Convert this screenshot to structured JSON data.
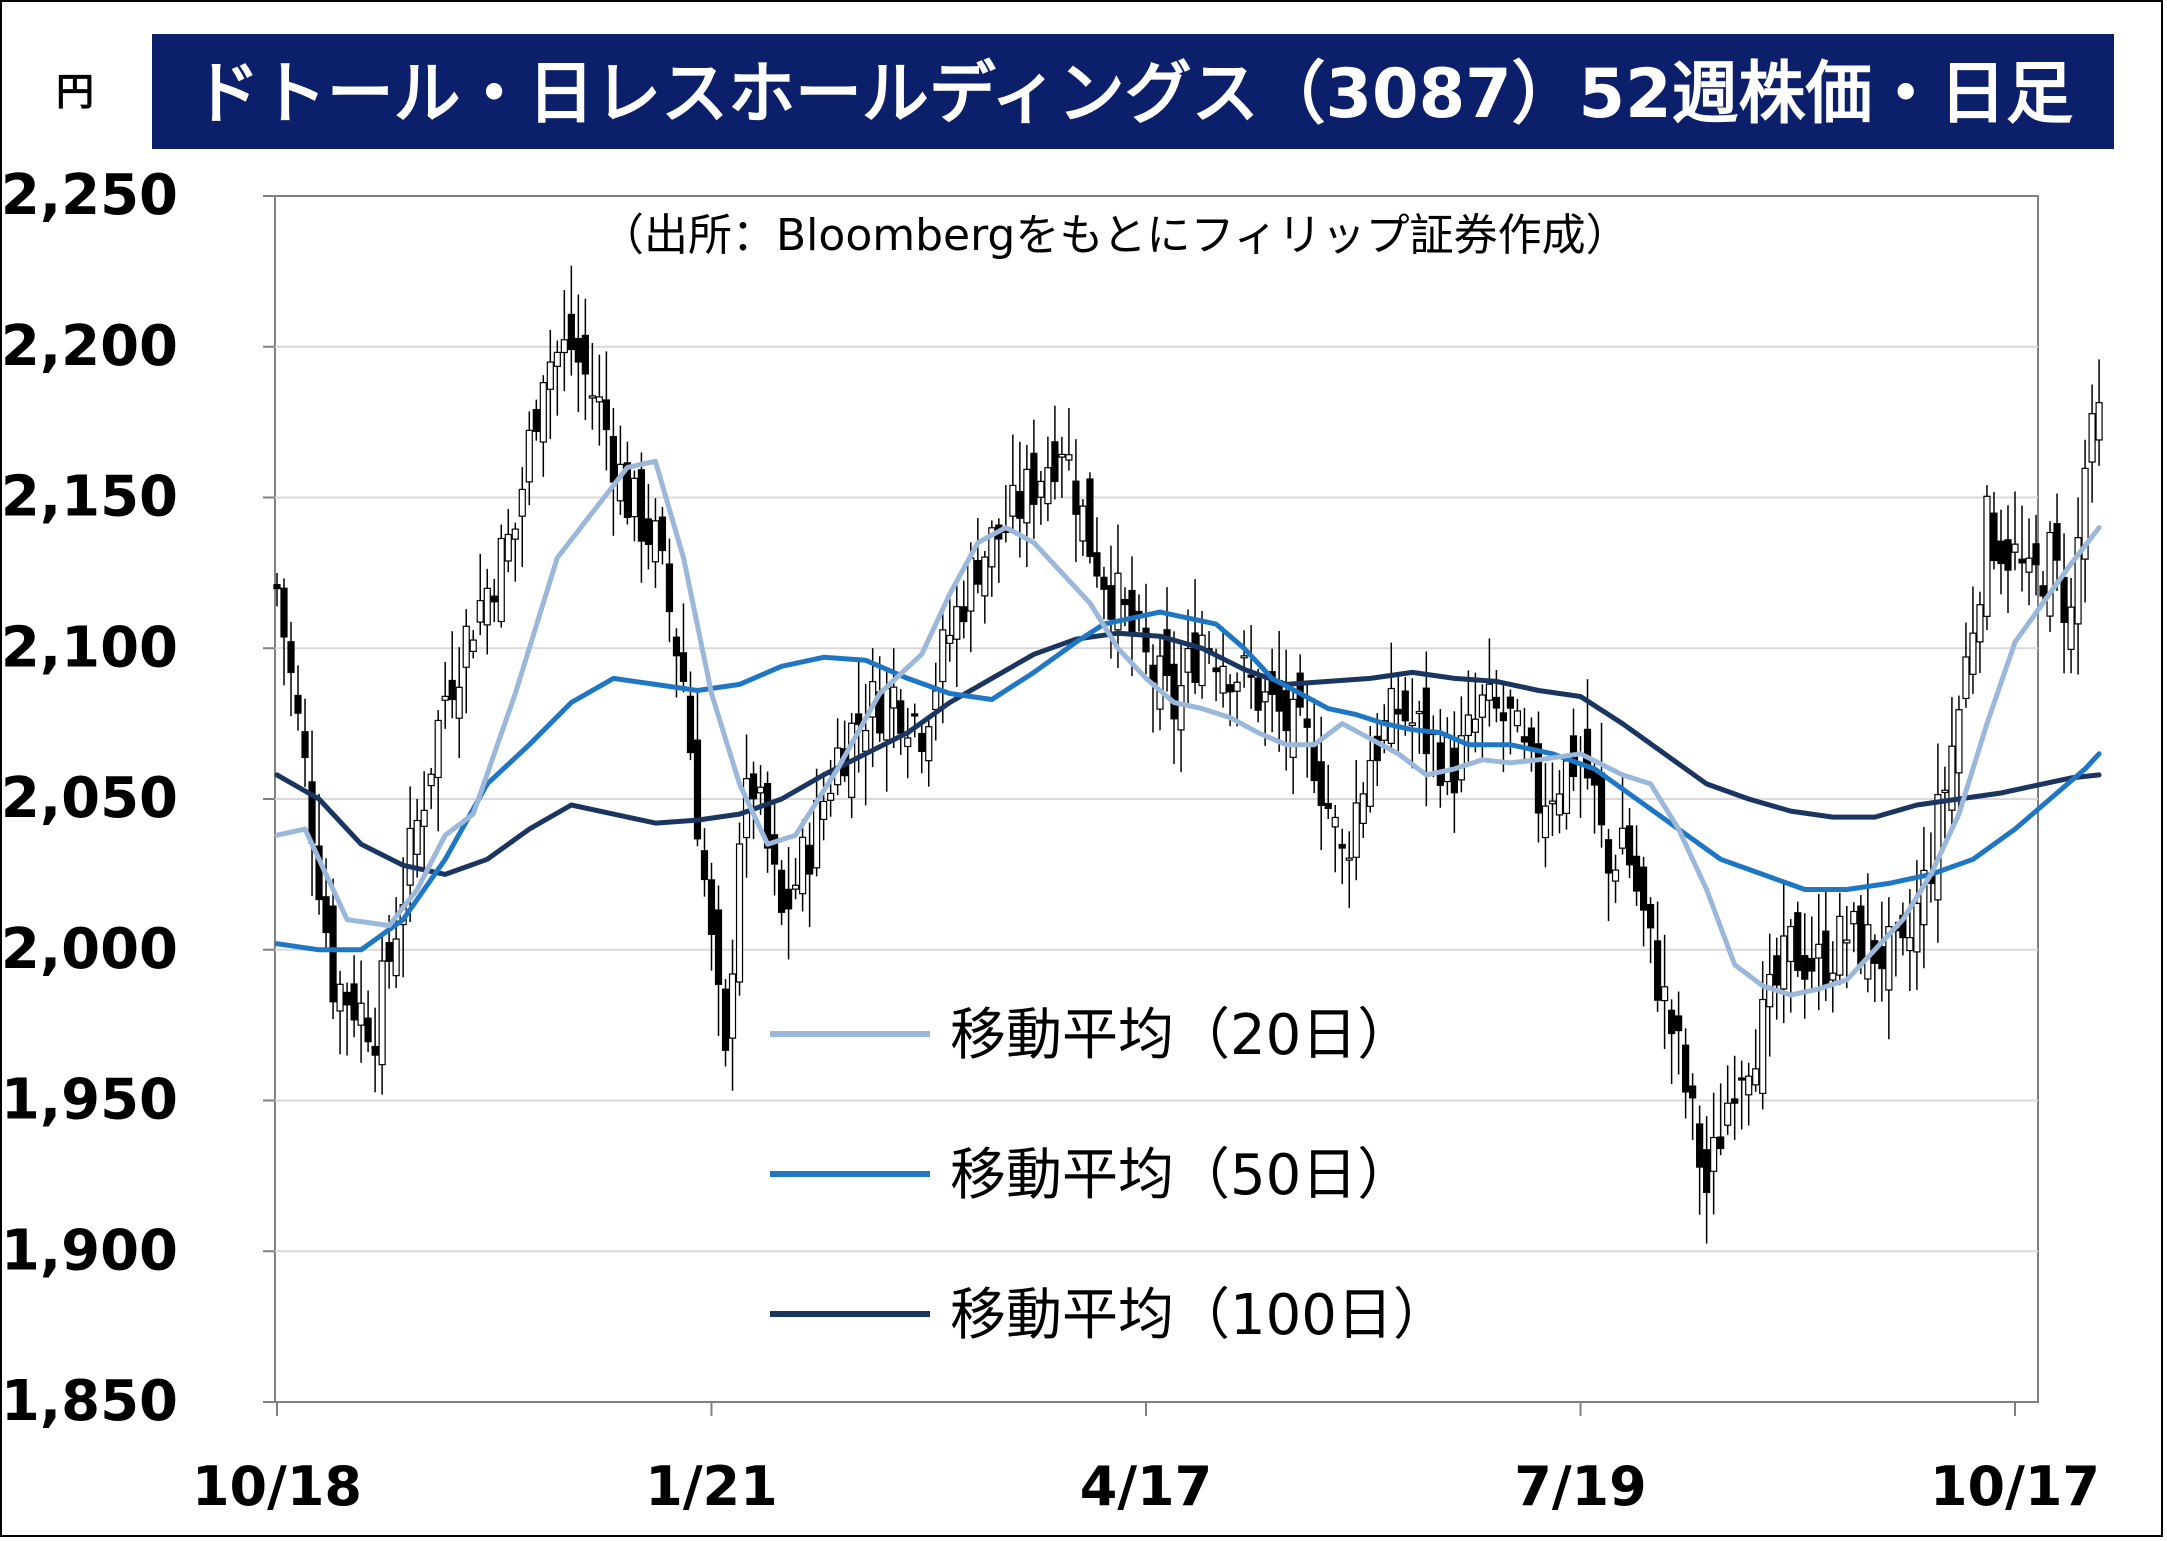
{
  "chart_data": {
    "type": "candlestick",
    "title": "ドトール・日レスホールディングス（3087）52週株価・日足",
    "ylabel": "円",
    "source_note": "（出所：Bloombergをもとにフィリップ証券作成）",
    "ylim": [
      1850,
      2250
    ],
    "yticks": [
      "2,250",
      "2,200",
      "2,150",
      "2,100",
      "2,050",
      "2,000",
      "1,950",
      "1,900",
      "1,850"
    ],
    "ytick_values": [
      2250,
      2200,
      2150,
      2100,
      2050,
      2000,
      1950,
      1900,
      1850
    ],
    "xtick_labels": [
      "10/18",
      "1/21",
      "4/17",
      "7/19",
      "10/17"
    ],
    "xtick_index": [
      0,
      62,
      124,
      186,
      248
    ],
    "colors": {
      "title_bg": "#0b1f6a",
      "ma20": "#9bb7d9",
      "ma50": "#1f77c4",
      "ma100": "#1a3560",
      "grid": "#d9d9d9",
      "axis": "#808080"
    },
    "legend": [
      {
        "name": "移動平均（20日）",
        "series": "ma20"
      },
      {
        "name": "移動平均（50日）",
        "series": "ma50"
      },
      {
        "name": "移動平均（100日）",
        "series": "ma100"
      }
    ],
    "candle_key_points": [
      [
        0,
        2120
      ],
      [
        4,
        2060
      ],
      [
        8,
        1990
      ],
      [
        14,
        1975
      ],
      [
        18,
        2020
      ],
      [
        24,
        2085
      ],
      [
        28,
        2110
      ],
      [
        34,
        2140
      ],
      [
        38,
        2195
      ],
      [
        42,
        2200
      ],
      [
        46,
        2180
      ],
      [
        50,
        2150
      ],
      [
        54,
        2135
      ],
      [
        58,
        2090
      ],
      [
        60,
        2045
      ],
      [
        62,
        2000
      ],
      [
        64,
        1960
      ],
      [
        66,
        2040
      ],
      [
        68,
        2055
      ],
      [
        72,
        2010
      ],
      [
        76,
        2035
      ],
      [
        80,
        2065
      ],
      [
        84,
        2080
      ],
      [
        88,
        2085
      ],
      [
        92,
        2075
      ],
      [
        96,
        2105
      ],
      [
        100,
        2130
      ],
      [
        104,
        2140
      ],
      [
        108,
        2155
      ],
      [
        112,
        2170
      ],
      [
        116,
        2135
      ],
      [
        120,
        2115
      ],
      [
        124,
        2095
      ],
      [
        128,
        2080
      ],
      [
        132,
        2105
      ],
      [
        136,
        2095
      ],
      [
        140,
        2085
      ],
      [
        144,
        2075
      ],
      [
        148,
        2065
      ],
      [
        152,
        2030
      ],
      [
        156,
        2065
      ],
      [
        160,
        2080
      ],
      [
        164,
        2070
      ],
      [
        168,
        2060
      ],
      [
        172,
        2080
      ],
      [
        176,
        2075
      ],
      [
        180,
        2050
      ],
      [
        184,
        2060
      ],
      [
        186,
        2065
      ],
      [
        188,
        2050
      ],
      [
        190,
        2025
      ],
      [
        192,
        2040
      ],
      [
        196,
        2000
      ],
      [
        200,
        1965
      ],
      [
        204,
        1920
      ],
      [
        208,
        1960
      ],
      [
        212,
        1975
      ],
      [
        216,
        2000
      ],
      [
        220,
        1995
      ],
      [
        224,
        2005
      ],
      [
        228,
        2000
      ],
      [
        232,
        1995
      ],
      [
        236,
        2030
      ],
      [
        240,
        2080
      ],
      [
        244,
        2140
      ],
      [
        248,
        2130
      ],
      [
        250,
        2120
      ],
      [
        253,
        2130
      ],
      [
        256,
        2110
      ],
      [
        258,
        2160
      ],
      [
        260,
        2175
      ]
    ],
    "ma20": [
      [
        0,
        2038
      ],
      [
        4,
        2040
      ],
      [
        10,
        2010
      ],
      [
        16,
        2008
      ],
      [
        20,
        2020
      ],
      [
        24,
        2038
      ],
      [
        28,
        2045
      ],
      [
        34,
        2085
      ],
      [
        40,
        2130
      ],
      [
        46,
        2148
      ],
      [
        50,
        2160
      ],
      [
        54,
        2162
      ],
      [
        58,
        2130
      ],
      [
        62,
        2085
      ],
      [
        66,
        2055
      ],
      [
        70,
        2035
      ],
      [
        74,
        2038
      ],
      [
        80,
        2060
      ],
      [
        86,
        2085
      ],
      [
        92,
        2098
      ],
      [
        96,
        2118
      ],
      [
        100,
        2135
      ],
      [
        104,
        2140
      ],
      [
        108,
        2135
      ],
      [
        112,
        2125
      ],
      [
        116,
        2115
      ],
      [
        120,
        2100
      ],
      [
        124,
        2090
      ],
      [
        128,
        2082
      ],
      [
        132,
        2080
      ],
      [
        136,
        2077
      ],
      [
        140,
        2072
      ],
      [
        144,
        2068
      ],
      [
        148,
        2068
      ],
      [
        152,
        2075
      ],
      [
        156,
        2070
      ],
      [
        160,
        2065
      ],
      [
        164,
        2058
      ],
      [
        168,
        2060
      ],
      [
        172,
        2063
      ],
      [
        176,
        2062
      ],
      [
        180,
        2063
      ],
      [
        186,
        2065
      ],
      [
        192,
        2058
      ],
      [
        196,
        2055
      ],
      [
        200,
        2040
      ],
      [
        204,
        2020
      ],
      [
        208,
        1995
      ],
      [
        212,
        1988
      ],
      [
        216,
        1985
      ],
      [
        220,
        1987
      ],
      [
        224,
        1990
      ],
      [
        228,
        2000
      ],
      [
        232,
        2010
      ],
      [
        236,
        2025
      ],
      [
        240,
        2045
      ],
      [
        244,
        2075
      ],
      [
        248,
        2102
      ],
      [
        252,
        2115
      ],
      [
        256,
        2128
      ],
      [
        260,
        2140
      ]
    ],
    "ma50": [
      [
        0,
        2002
      ],
      [
        6,
        2000
      ],
      [
        12,
        2000
      ],
      [
        18,
        2010
      ],
      [
        24,
        2030
      ],
      [
        30,
        2055
      ],
      [
        36,
        2068
      ],
      [
        42,
        2082
      ],
      [
        48,
        2090
      ],
      [
        54,
        2088
      ],
      [
        60,
        2086
      ],
      [
        66,
        2088
      ],
      [
        72,
        2094
      ],
      [
        78,
        2097
      ],
      [
        84,
        2096
      ],
      [
        90,
        2090
      ],
      [
        96,
        2085
      ],
      [
        102,
        2083
      ],
      [
        108,
        2092
      ],
      [
        114,
        2102
      ],
      [
        118,
        2108
      ],
      [
        122,
        2110
      ],
      [
        126,
        2112
      ],
      [
        130,
        2110
      ],
      [
        134,
        2108
      ],
      [
        138,
        2100
      ],
      [
        142,
        2090
      ],
      [
        146,
        2085
      ],
      [
        150,
        2080
      ],
      [
        154,
        2078
      ],
      [
        158,
        2075
      ],
      [
        162,
        2073
      ],
      [
        166,
        2072
      ],
      [
        170,
        2068
      ],
      [
        176,
        2068
      ],
      [
        182,
        2065
      ],
      [
        188,
        2060
      ],
      [
        194,
        2050
      ],
      [
        200,
        2040
      ],
      [
        206,
        2030
      ],
      [
        212,
        2025
      ],
      [
        218,
        2020
      ],
      [
        224,
        2020
      ],
      [
        230,
        2022
      ],
      [
        236,
        2025
      ],
      [
        242,
        2030
      ],
      [
        248,
        2040
      ],
      [
        254,
        2052
      ],
      [
        258,
        2060
      ],
      [
        260,
        2065
      ]
    ],
    "ma100": [
      [
        0,
        2058
      ],
      [
        6,
        2050
      ],
      [
        12,
        2035
      ],
      [
        18,
        2028
      ],
      [
        24,
        2025
      ],
      [
        30,
        2030
      ],
      [
        36,
        2040
      ],
      [
        42,
        2048
      ],
      [
        48,
        2045
      ],
      [
        54,
        2042
      ],
      [
        60,
        2043
      ],
      [
        66,
        2045
      ],
      [
        72,
        2050
      ],
      [
        78,
        2058
      ],
      [
        84,
        2065
      ],
      [
        90,
        2072
      ],
      [
        96,
        2082
      ],
      [
        102,
        2090
      ],
      [
        108,
        2098
      ],
      [
        114,
        2103
      ],
      [
        120,
        2105
      ],
      [
        126,
        2104
      ],
      [
        132,
        2100
      ],
      [
        138,
        2093
      ],
      [
        144,
        2088
      ],
      [
        150,
        2089
      ],
      [
        156,
        2090
      ],
      [
        162,
        2092
      ],
      [
        168,
        2090
      ],
      [
        174,
        2089
      ],
      [
        180,
        2086
      ],
      [
        186,
        2084
      ],
      [
        192,
        2075
      ],
      [
        198,
        2065
      ],
      [
        204,
        2055
      ],
      [
        210,
        2050
      ],
      [
        216,
        2046
      ],
      [
        222,
        2044
      ],
      [
        228,
        2044
      ],
      [
        234,
        2048
      ],
      [
        240,
        2050
      ],
      [
        246,
        2052
      ],
      [
        252,
        2055
      ],
      [
        256,
        2057
      ],
      [
        260,
        2058
      ]
    ]
  }
}
